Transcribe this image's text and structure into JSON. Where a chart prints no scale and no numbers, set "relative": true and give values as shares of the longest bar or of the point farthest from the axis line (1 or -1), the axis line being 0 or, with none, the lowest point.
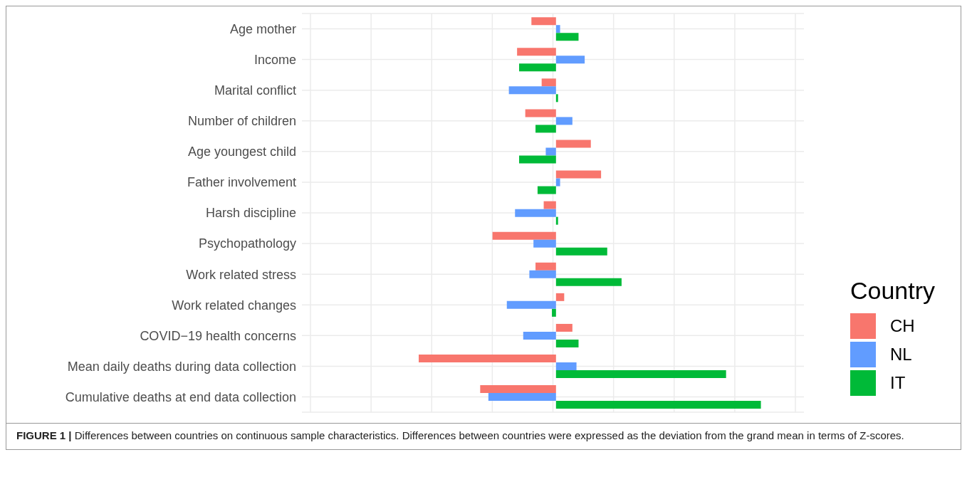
{
  "chart_data": {
    "type": "bar",
    "orientation": "horizontal",
    "relative": true,
    "grid": true,
    "legend": "right",
    "legend_title": "Country",
    "categories": [
      "Age mother",
      "Income",
      "Marital conflict",
      "Number of children",
      "Age youngest child",
      "Father involvement",
      "Harsh discipline",
      "Psychopathology",
      "Work related stress",
      "Work related changes",
      "COVID−19 health concerns",
      "Mean daily deaths during data collection",
      "Cumulative deaths at end data collection"
    ],
    "series": [
      {
        "name": "CH",
        "color": "#f8766d",
        "values": [
          -0.12,
          -0.19,
          -0.07,
          -0.15,
          0.17,
          0.22,
          -0.06,
          -0.31,
          -0.1,
          0.04,
          0.08,
          -0.67,
          -0.37
        ]
      },
      {
        "name": "NL",
        "color": "#619cff",
        "values": [
          0.02,
          0.14,
          -0.23,
          0.08,
          -0.05,
          0.02,
          -0.2,
          -0.11,
          -0.13,
          -0.24,
          -0.16,
          0.1,
          -0.33
        ]
      },
      {
        "name": "IT",
        "color": "#00ba38",
        "values": [
          0.11,
          -0.18,
          0.01,
          -0.1,
          -0.18,
          -0.09,
          0.01,
          0.25,
          0.32,
          -0.02,
          0.11,
          0.83,
          1
        ]
      }
    ],
    "annotations": [
      "FIGURE 1 | Differences between countries on continuous sample characteristics. Differences between countries were expressed as the deviation from the grand mean in terms of Z-scores."
    ]
  }
}
